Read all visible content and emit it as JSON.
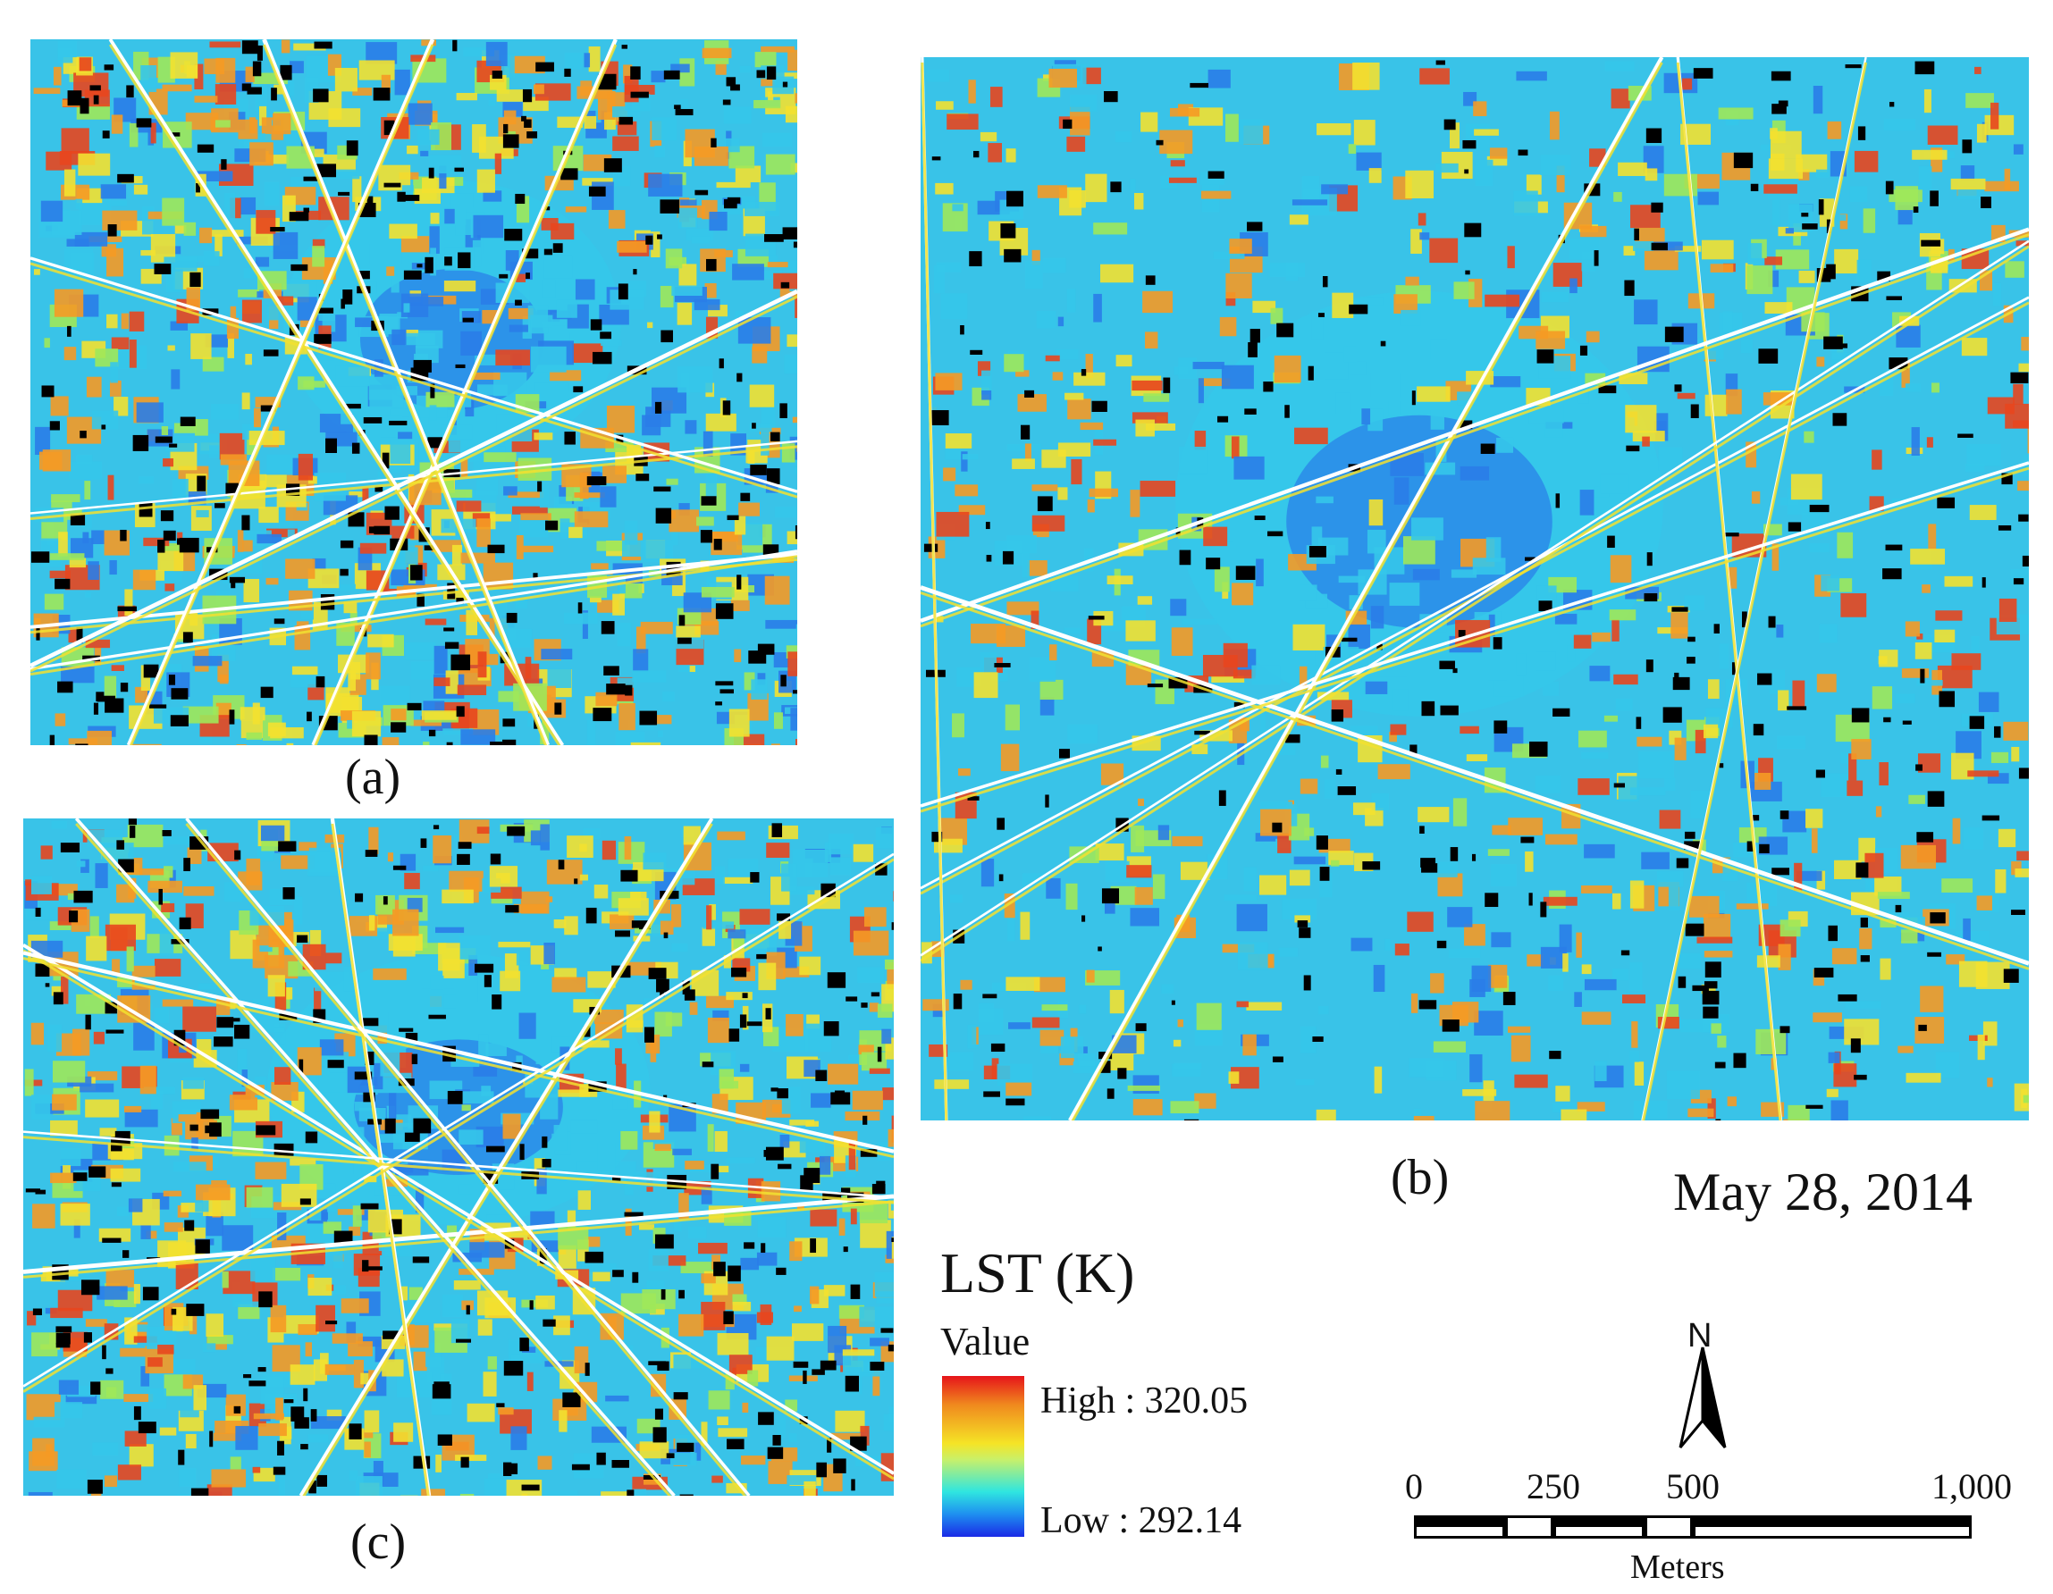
{
  "panels": [
    {
      "id": "a",
      "label": "(a)"
    },
    {
      "id": "b",
      "label": "(b)"
    },
    {
      "id": "c",
      "label": "(c)"
    }
  ],
  "date": "May 28, 2014",
  "legend": {
    "title": "LST (K)",
    "subtitle": "Value",
    "high_label": "High : 320.05",
    "low_label": "Low : 292.14",
    "high_value": 320.05,
    "low_value": 292.14,
    "ramp_colors": [
      "#e6141a",
      "#f08a1e",
      "#f5e426",
      "#c8f06a",
      "#2fe6e0",
      "#1e8ff0",
      "#1a2ae6"
    ]
  },
  "north_arrow": {
    "label": "N"
  },
  "scale_bar": {
    "ticks": [
      "0",
      "250",
      "500",
      "1,000"
    ],
    "tick_values": [
      0,
      250,
      500,
      1000
    ],
    "units": "Meters"
  },
  "map_colors": {
    "hot": "#e8461e",
    "warm": "#f59a25",
    "mild": "#f3e130",
    "cool": "#9fe85a",
    "cold": "#35c7ea",
    "coldest": "#2a7de8",
    "shadow": "#000000",
    "road": "#ffffff"
  }
}
